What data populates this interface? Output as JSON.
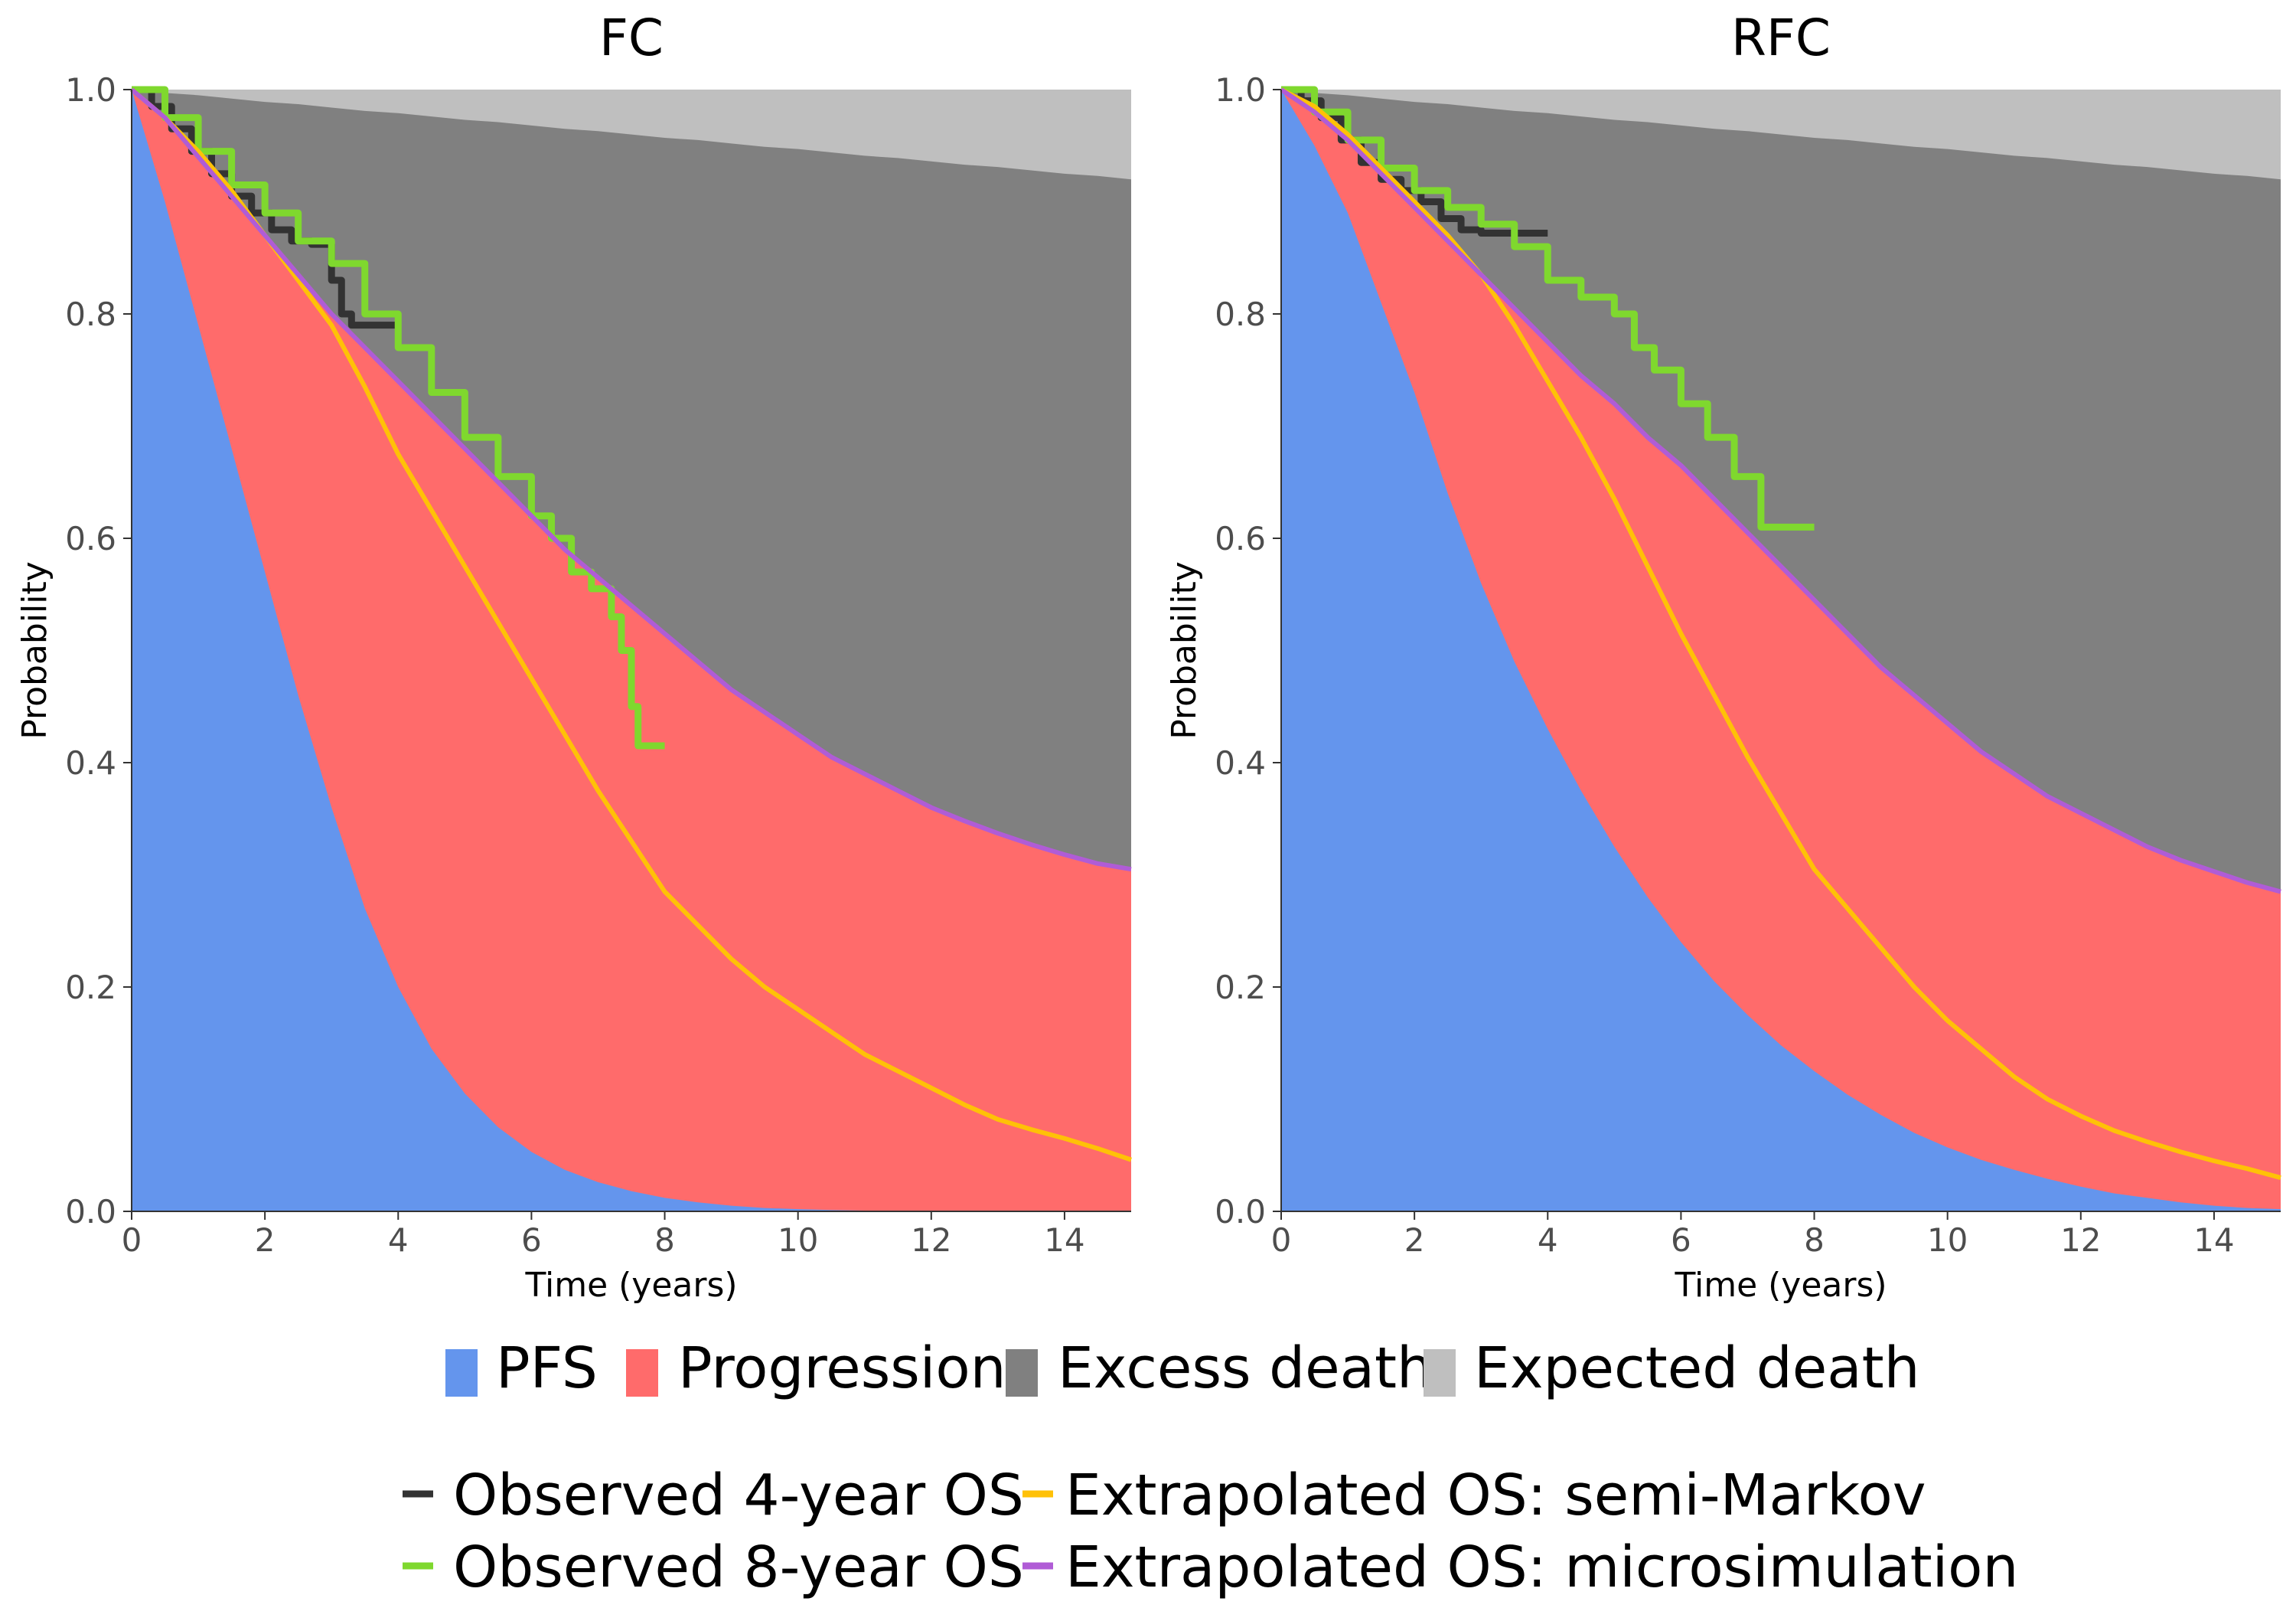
{
  "chart_data": [
    {
      "type": "area",
      "title": "FC",
      "xlabel": "Time (years)",
      "ylabel": "Probability",
      "xlim": [
        0,
        15
      ],
      "ylim": [
        0,
        1
      ],
      "xticks": [
        0,
        2,
        4,
        6,
        8,
        10,
        12,
        14
      ],
      "yticks": [
        0.0,
        0.2,
        0.4,
        0.6,
        0.8,
        1.0
      ],
      "x": [
        0,
        0.5,
        1,
        1.5,
        2,
        2.5,
        3,
        3.5,
        4,
        4.5,
        5,
        5.5,
        6,
        6.5,
        7,
        7.5,
        8,
        8.5,
        9,
        9.5,
        10,
        10.5,
        11,
        11.5,
        12,
        12.5,
        13,
        13.5,
        14,
        14.5,
        15
      ],
      "areas": [
        {
          "name": "PFS",
          "values": [
            1.0,
            0.9,
            0.79,
            0.68,
            0.57,
            0.46,
            0.36,
            0.27,
            0.2,
            0.145,
            0.105,
            0.075,
            0.053,
            0.037,
            0.026,
            0.018,
            0.012,
            0.008,
            0.005,
            0.003,
            0.002,
            0.0012,
            0.0007,
            0.0004,
            0.0002,
            0.0001,
            0,
            0,
            0,
            0,
            0
          ]
        },
        {
          "name": "Progression",
          "values": [
            1.0,
            0.975,
            0.94,
            0.905,
            0.87,
            0.835,
            0.8,
            0.77,
            0.74,
            0.71,
            0.68,
            0.65,
            0.62,
            0.59,
            0.565,
            0.54,
            0.515,
            0.49,
            0.465,
            0.445,
            0.425,
            0.405,
            0.39,
            0.375,
            0.36,
            0.348,
            0.337,
            0.327,
            0.318,
            0.31,
            0.305
          ]
        },
        {
          "name": "Excess death",
          "values": [
            1.0,
            0.997,
            0.995,
            0.992,
            0.989,
            0.987,
            0.984,
            0.981,
            0.979,
            0.976,
            0.973,
            0.971,
            0.968,
            0.965,
            0.963,
            0.96,
            0.957,
            0.955,
            0.952,
            0.949,
            0.947,
            0.944,
            0.941,
            0.939,
            0.936,
            0.933,
            0.931,
            0.928,
            0.925,
            0.923,
            0.92
          ]
        },
        {
          "name": "Expected death",
          "values": [
            1,
            1,
            1,
            1,
            1,
            1,
            1,
            1,
            1,
            1,
            1,
            1,
            1,
            1,
            1,
            1,
            1,
            1,
            1,
            1,
            1,
            1,
            1,
            1,
            1,
            1,
            1,
            1,
            1,
            1,
            1
          ]
        }
      ],
      "lines": [
        {
          "name": "Observed 4-year OS",
          "step": true,
          "x": [
            0,
            0.3,
            0.6,
            0.9,
            1.2,
            1.5,
            1.8,
            2.1,
            2.4,
            2.7,
            3.0,
            3.15,
            3.3,
            4.0
          ],
          "y": [
            1.0,
            0.985,
            0.965,
            0.945,
            0.925,
            0.905,
            0.89,
            0.875,
            0.865,
            0.862,
            0.83,
            0.8,
            0.79,
            0.79
          ]
        },
        {
          "name": "Observed 8-year OS",
          "step": true,
          "x": [
            0,
            0.5,
            1.0,
            1.5,
            2.0,
            2.5,
            3.0,
            3.5,
            4.0,
            4.5,
            5.0,
            5.5,
            6.0,
            6.3,
            6.6,
            6.9,
            7.2,
            7.35,
            7.5,
            7.6,
            8.0
          ],
          "y": [
            1.0,
            0.975,
            0.945,
            0.915,
            0.89,
            0.865,
            0.845,
            0.8,
            0.77,
            0.73,
            0.69,
            0.655,
            0.62,
            0.6,
            0.57,
            0.555,
            0.53,
            0.5,
            0.45,
            0.415,
            0.415
          ]
        },
        {
          "name": "Extrapolated OS: semi-Markov",
          "x": [
            0,
            0.5,
            1,
            1.5,
            2,
            2.5,
            3,
            3.5,
            4,
            4.5,
            5,
            5.5,
            6,
            6.5,
            7,
            7.5,
            8,
            8.5,
            9,
            9.5,
            10,
            10.5,
            11,
            11.5,
            12,
            12.5,
            13,
            13.5,
            14,
            14.5,
            15
          ],
          "y": [
            1.0,
            0.975,
            0.945,
            0.91,
            0.87,
            0.83,
            0.79,
            0.735,
            0.675,
            0.625,
            0.575,
            0.525,
            0.475,
            0.425,
            0.375,
            0.33,
            0.285,
            0.255,
            0.225,
            0.2,
            0.18,
            0.16,
            0.14,
            0.125,
            0.11,
            0.095,
            0.082,
            0.073,
            0.065,
            0.056,
            0.046
          ]
        },
        {
          "name": "Extrapolated OS: microsimulation",
          "x": [
            0,
            0.5,
            1,
            1.5,
            2,
            2.5,
            3,
            3.5,
            4,
            4.5,
            5,
            5.5,
            6,
            6.5,
            7,
            7.5,
            8,
            8.5,
            9,
            9.5,
            10,
            10.5,
            11,
            11.5,
            12,
            12.5,
            13,
            13.5,
            14,
            14.5,
            15
          ],
          "y": [
            1.0,
            0.975,
            0.94,
            0.905,
            0.87,
            0.835,
            0.8,
            0.77,
            0.74,
            0.71,
            0.68,
            0.65,
            0.62,
            0.59,
            0.565,
            0.54,
            0.515,
            0.49,
            0.465,
            0.445,
            0.425,
            0.405,
            0.39,
            0.375,
            0.36,
            0.348,
            0.337,
            0.327,
            0.318,
            0.31,
            0.305
          ]
        }
      ]
    },
    {
      "type": "area",
      "title": "RFC",
      "xlabel": "Time (years)",
      "ylabel": "Probability",
      "xlim": [
        0,
        15
      ],
      "ylim": [
        0,
        1
      ],
      "xticks": [
        0,
        2,
        4,
        6,
        8,
        10,
        12,
        14
      ],
      "yticks": [
        0.0,
        0.2,
        0.4,
        0.6,
        0.8,
        1.0
      ],
      "x": [
        0,
        0.5,
        1,
        1.5,
        2,
        2.5,
        3,
        3.5,
        4,
        4.5,
        5,
        5.5,
        6,
        6.5,
        7,
        7.5,
        8,
        8.5,
        9,
        9.5,
        10,
        10.5,
        11,
        11.5,
        12,
        12.5,
        13,
        13.5,
        14,
        14.5,
        15
      ],
      "areas": [
        {
          "name": "PFS",
          "values": [
            1.0,
            0.95,
            0.89,
            0.81,
            0.73,
            0.64,
            0.56,
            0.49,
            0.43,
            0.375,
            0.325,
            0.28,
            0.24,
            0.205,
            0.175,
            0.148,
            0.125,
            0.104,
            0.086,
            0.07,
            0.057,
            0.046,
            0.037,
            0.029,
            0.022,
            0.016,
            0.012,
            0.008,
            0.005,
            0.003,
            0.002
          ]
        },
        {
          "name": "Progression",
          "values": [
            1.0,
            0.98,
            0.955,
            0.925,
            0.895,
            0.865,
            0.835,
            0.805,
            0.775,
            0.745,
            0.72,
            0.69,
            0.665,
            0.635,
            0.605,
            0.575,
            0.545,
            0.515,
            0.485,
            0.46,
            0.435,
            0.41,
            0.39,
            0.37,
            0.355,
            0.34,
            0.325,
            0.313,
            0.303,
            0.293,
            0.285
          ]
        },
        {
          "name": "Excess death",
          "values": [
            1.0,
            0.997,
            0.995,
            0.992,
            0.989,
            0.987,
            0.984,
            0.981,
            0.979,
            0.976,
            0.973,
            0.971,
            0.968,
            0.965,
            0.963,
            0.96,
            0.957,
            0.955,
            0.952,
            0.949,
            0.947,
            0.944,
            0.941,
            0.939,
            0.936,
            0.933,
            0.931,
            0.928,
            0.925,
            0.923,
            0.92
          ]
        },
        {
          "name": "Expected death",
          "values": [
            1,
            1,
            1,
            1,
            1,
            1,
            1,
            1,
            1,
            1,
            1,
            1,
            1,
            1,
            1,
            1,
            1,
            1,
            1,
            1,
            1,
            1,
            1,
            1,
            1,
            1,
            1,
            1,
            1,
            1,
            1
          ]
        }
      ],
      "lines": [
        {
          "name": "Observed 4-year OS",
          "step": true,
          "x": [
            0,
            0.3,
            0.6,
            0.9,
            1.2,
            1.5,
            1.8,
            2.1,
            2.4,
            2.7,
            3.0,
            4.0
          ],
          "y": [
            1.0,
            0.99,
            0.975,
            0.955,
            0.935,
            0.92,
            0.91,
            0.9,
            0.885,
            0.875,
            0.872,
            0.872
          ]
        },
        {
          "name": "Observed 8-year OS",
          "step": true,
          "x": [
            0,
            0.5,
            1.0,
            1.5,
            2.0,
            2.5,
            3.0,
            3.5,
            4.0,
            4.5,
            5.0,
            5.3,
            5.6,
            6.0,
            6.4,
            6.8,
            7.2,
            8.0
          ],
          "y": [
            1.0,
            0.98,
            0.955,
            0.93,
            0.91,
            0.895,
            0.88,
            0.86,
            0.83,
            0.815,
            0.8,
            0.77,
            0.75,
            0.72,
            0.69,
            0.655,
            0.61,
            0.61
          ]
        },
        {
          "name": "Extrapolated OS: semi-Markov",
          "x": [
            0,
            0.5,
            1,
            1.5,
            2,
            2.5,
            3,
            3.5,
            4,
            4.5,
            5,
            5.5,
            6,
            6.5,
            7,
            7.5,
            8,
            8.5,
            9,
            9.5,
            10,
            10.5,
            11,
            11.5,
            12,
            12.5,
            13,
            13.5,
            14,
            14.5,
            15
          ],
          "y": [
            1.0,
            0.985,
            0.96,
            0.93,
            0.9,
            0.87,
            0.835,
            0.79,
            0.74,
            0.69,
            0.635,
            0.575,
            0.515,
            0.46,
            0.405,
            0.355,
            0.305,
            0.27,
            0.235,
            0.2,
            0.17,
            0.145,
            0.12,
            0.1,
            0.085,
            0.072,
            0.062,
            0.053,
            0.045,
            0.038,
            0.03
          ]
        },
        {
          "name": "Extrapolated OS: microsimulation",
          "x": [
            0,
            0.5,
            1,
            1.5,
            2,
            2.5,
            3,
            3.5,
            4,
            4.5,
            5,
            5.5,
            6,
            6.5,
            7,
            7.5,
            8,
            8.5,
            9,
            9.5,
            10,
            10.5,
            11,
            11.5,
            12,
            12.5,
            13,
            13.5,
            14,
            14.5,
            15
          ],
          "y": [
            1.0,
            0.98,
            0.955,
            0.925,
            0.895,
            0.865,
            0.835,
            0.805,
            0.775,
            0.745,
            0.72,
            0.69,
            0.665,
            0.635,
            0.605,
            0.575,
            0.545,
            0.515,
            0.485,
            0.46,
            0.435,
            0.41,
            0.39,
            0.37,
            0.355,
            0.34,
            0.325,
            0.313,
            0.303,
            0.293,
            0.285
          ]
        }
      ]
    }
  ],
  "legend": {
    "fill_items": [
      {
        "label": "PFS",
        "color": "#6495ED"
      },
      {
        "label": "Progression",
        "color": "#FF6B6B"
      },
      {
        "label": "Excess death",
        "color": "#808080"
      },
      {
        "label": "Expected death",
        "color": "#BFBFBF"
      }
    ],
    "line_items": [
      {
        "label": "Observed 4-year OS",
        "color": "#333333"
      },
      {
        "label": "Extrapolated OS: semi-Markov",
        "color": "#FFC107"
      },
      {
        "label": "Observed 8-year OS",
        "color": "#7FD82E"
      },
      {
        "label": "Extrapolated OS: microsimulation",
        "color": "#B05CD6"
      }
    ]
  },
  "colors": {
    "pfs": "#6495ED",
    "progression": "#FF6B6B",
    "excess_death": "#808080",
    "expected_death": "#BFBFBF",
    "observed_4y": "#333333",
    "observed_8y": "#7FD82E",
    "semi_markov": "#FFC107",
    "microsimulation": "#B05CD6"
  }
}
